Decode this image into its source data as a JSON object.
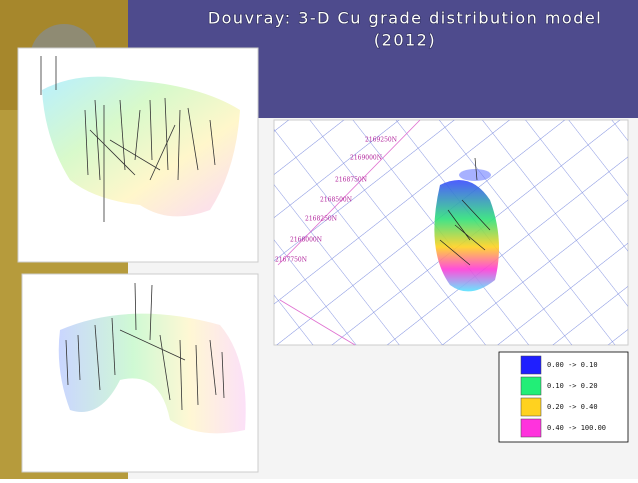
{
  "title": {
    "lines": [
      "Douvray:  3-D Cu grade distribution model",
      "(2012)"
    ]
  },
  "map": {
    "grid_labels": [
      "2169250N",
      "2169000N",
      "2168750N",
      "2168500N",
      "2168250N",
      "2168000N",
      "2167750N"
    ]
  },
  "legend": {
    "items": [
      {
        "label": "0.00 -> 0.10",
        "color": "#1f1fff"
      },
      {
        "label": "0.10 -> 0.20",
        "color": "#22ee77"
      },
      {
        "label": "0.20 -> 0.40",
        "color": "#ffd21f"
      },
      {
        "label": "0.40 -> 100.00",
        "color": "#ff33dd"
      }
    ]
  }
}
